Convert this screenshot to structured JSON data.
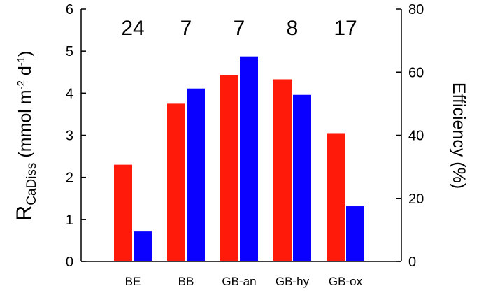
{
  "chart_data": {
    "type": "bar",
    "categories": [
      "BE",
      "BB",
      "GB-an",
      "GB-hy",
      "GB-ox"
    ],
    "series": [
      {
        "axis": "left",
        "color": "#ff1a0a",
        "values": [
          2.3,
          3.75,
          4.43,
          4.33,
          3.05
        ]
      },
      {
        "axis": "right",
        "color": "#0a00ff",
        "values": [
          9.5,
          54.8,
          65.0,
          52.8,
          17.5
        ]
      }
    ],
    "annotations": [
      "24",
      "7",
      "7",
      "8",
      "17"
    ],
    "ylabel_left": {
      "main": "R",
      "sub": "CaDiss",
      "unit_a": " (mmol m",
      "sup_a": "-2",
      "unit_b": " d",
      "sup_b": "-1",
      "unit_c": ")"
    },
    "ylabel_right": "Efficiency (%)",
    "ylim_left": [
      0,
      6
    ],
    "ylim_right": [
      0,
      80
    ],
    "yticks_left": [
      "0",
      "1",
      "2",
      "3",
      "4",
      "5",
      "6"
    ],
    "yticks_right": [
      "0",
      "20",
      "40",
      "60",
      "80"
    ],
    "grid": false,
    "legend": "none"
  }
}
